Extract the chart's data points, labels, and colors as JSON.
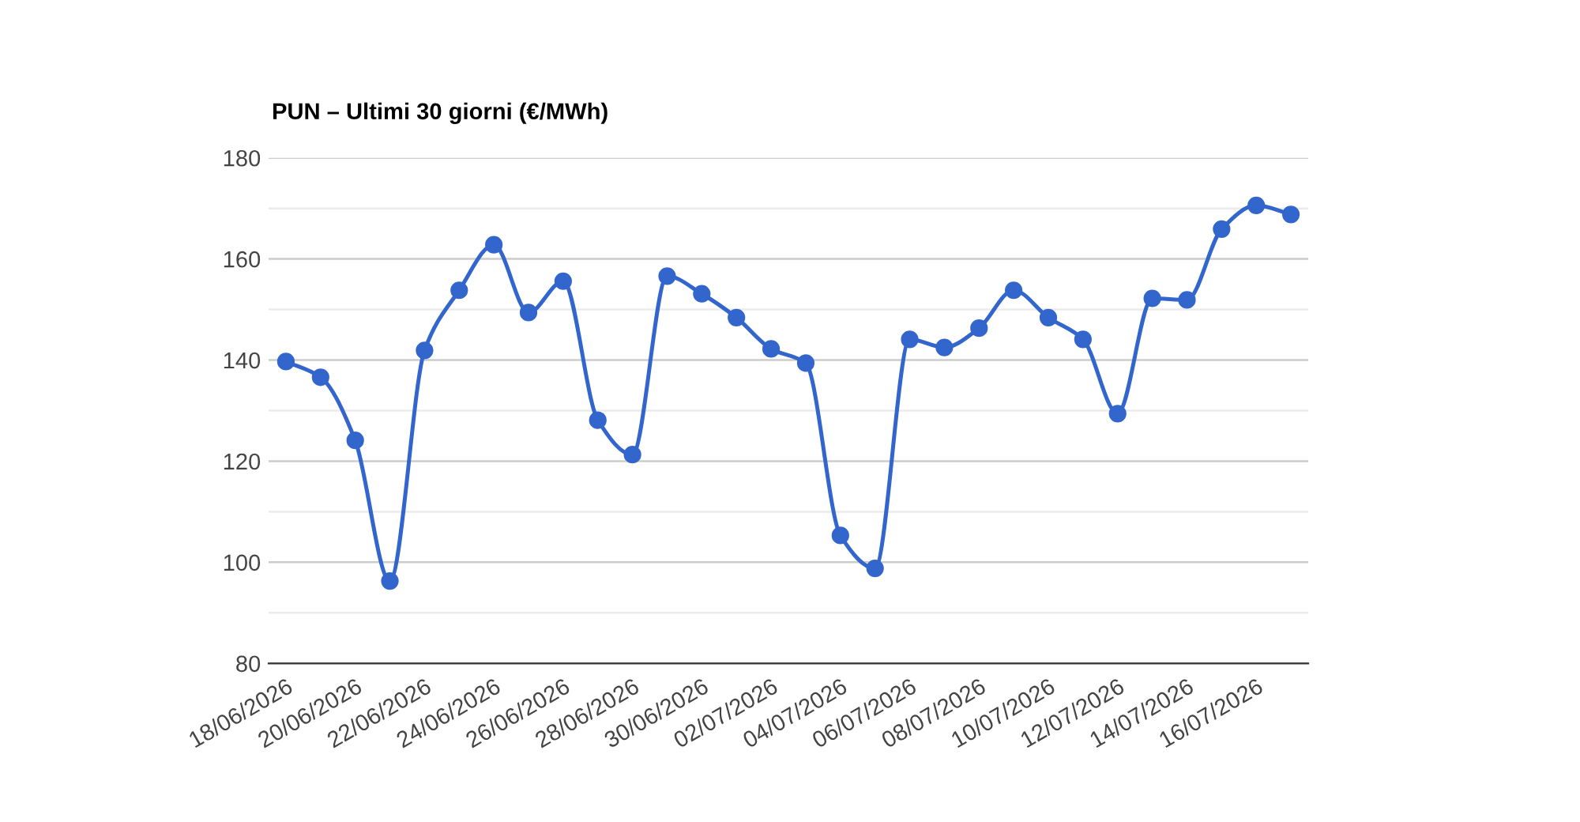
{
  "chart_data": {
    "type": "line",
    "title": "PUN – Ultimi 30 giorni (€/MWh)",
    "categories": [
      "18/06/2026",
      null,
      "20/06/2026",
      null,
      "22/06/2026",
      null,
      "24/06/2026",
      null,
      "26/06/2026",
      null,
      "28/06/2026",
      null,
      "30/06/2026",
      null,
      "02/07/2026",
      null,
      "04/07/2026",
      null,
      "06/07/2026",
      null,
      "08/07/2026",
      null,
      "10/07/2026",
      null,
      "12/07/2026",
      null,
      "14/07/2026",
      null,
      "16/07/2026",
      null
    ],
    "series": [
      {
        "color": "#3366cc",
        "values": [
          139.7,
          136.6,
          124.1,
          96.3,
          141.9,
          153.8,
          162.8,
          149.4,
          155.6,
          128.1,
          121.3,
          156.6,
          153.1,
          148.4,
          142.2,
          139.4,
          105.3,
          98.8,
          144.1,
          142.5,
          146.3,
          153.8,
          148.4,
          144.1,
          129.4,
          152.2,
          151.9,
          165.9,
          170.6,
          168.8
        ]
      }
    ],
    "ylim": [
      80,
      180
    ],
    "yticks": [
      80,
      {
        "value": 90,
        "label": null
      },
      100,
      {
        "value": 110,
        "label": null
      },
      120,
      {
        "value": 130,
        "label": null
      },
      140,
      {
        "value": 150,
        "label": null
      },
      160,
      {
        "value": 170,
        "label": null
      },
      180
    ],
    "grid": "y",
    "marker": "circle",
    "line_style": "solid",
    "legend": false
  }
}
